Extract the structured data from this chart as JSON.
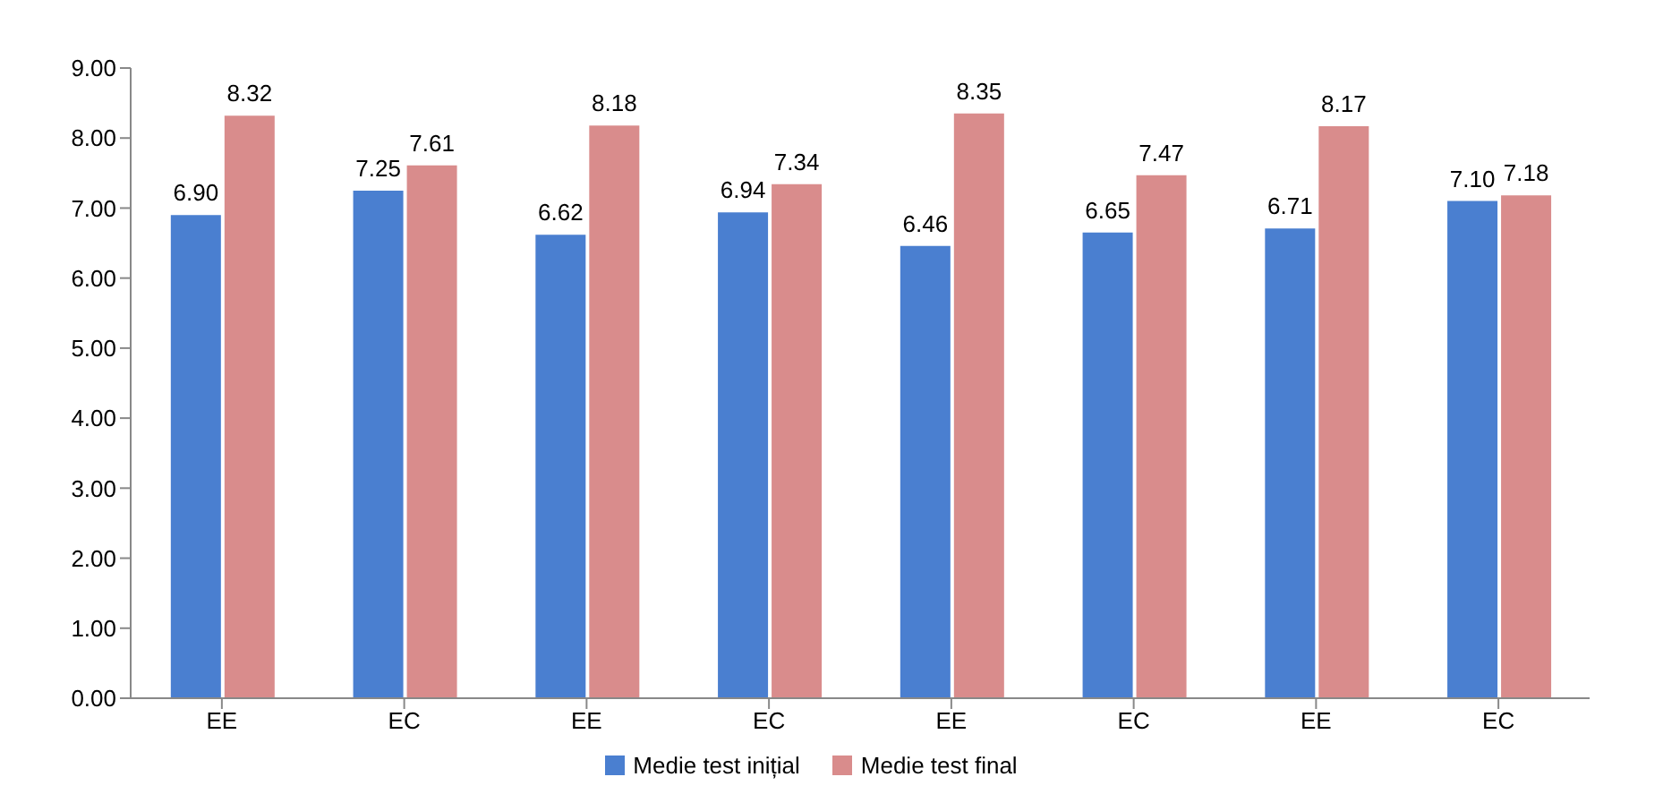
{
  "chart_data": {
    "type": "bar",
    "categories": [
      "EE",
      "EC",
      "EE",
      "EC",
      "EE",
      "EC",
      "EE",
      "EC"
    ],
    "series": [
      {
        "name": "Medie test inițial",
        "color": "#4a7fd0",
        "values": [
          6.9,
          7.25,
          6.62,
          6.94,
          6.46,
          6.65,
          6.71,
          7.1
        ],
        "value_labels": [
          "6.90",
          "7.25",
          "6.62",
          "6.94",
          "6.46",
          "6.65",
          "6.71",
          "7.10"
        ]
      },
      {
        "name": "Medie test final",
        "color": "#d98c8c",
        "values": [
          8.32,
          7.61,
          8.18,
          7.34,
          8.35,
          7.47,
          8.17,
          7.18
        ],
        "value_labels": [
          "8.32",
          "7.61",
          "8.18",
          "7.34",
          "8.35",
          "7.47",
          "8.17",
          "7.18"
        ]
      }
    ],
    "ylim": [
      0,
      9
    ],
    "yticks": [
      {
        "value": 0,
        "label": "0.00"
      },
      {
        "value": 1,
        "label": "1.00"
      },
      {
        "value": 2,
        "label": "2.00"
      },
      {
        "value": 3,
        "label": "3.00"
      },
      {
        "value": 4,
        "label": "4.00"
      },
      {
        "value": 5,
        "label": "5.00"
      },
      {
        "value": 6,
        "label": "6.00"
      },
      {
        "value": 7,
        "label": "7.00"
      },
      {
        "value": 8,
        "label": "8.00"
      },
      {
        "value": 9,
        "label": "9.00"
      }
    ],
    "grid": false,
    "legend": "bottom"
  }
}
